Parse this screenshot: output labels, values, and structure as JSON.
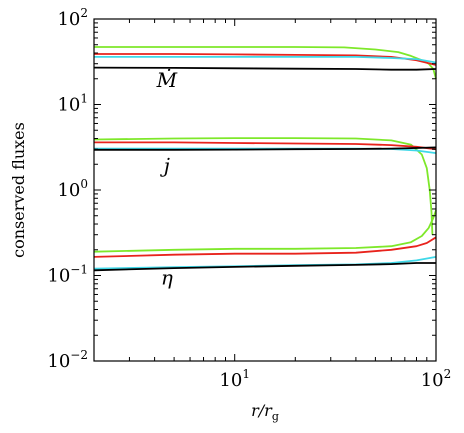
{
  "chart_data": {
    "type": "line",
    "xlabel": "r/r",
    "xlabel_sub": "g",
    "ylabel": "conserved fluxes",
    "xscale": "log",
    "yscale": "log",
    "xlim": [
      2,
      100
    ],
    "ylim": [
      0.01,
      100
    ],
    "grid": false,
    "x_ticks": [
      {
        "value": 10,
        "base": "10",
        "exp": "1"
      },
      {
        "value": 100,
        "base": "10",
        "exp": "2"
      }
    ],
    "y_ticks": [
      {
        "value": 0.01,
        "base": "10",
        "exp": "−2"
      },
      {
        "value": 0.1,
        "base": "10",
        "exp": "−1"
      },
      {
        "value": 1,
        "base": "10",
        "exp": "0"
      },
      {
        "value": 10,
        "base": "10",
        "exp": "1"
      },
      {
        "value": 100,
        "base": "10",
        "exp": "2"
      }
    ],
    "annotations": [
      {
        "text": "Ṁ",
        "x": 4.6,
        "y": 16
      },
      {
        "text": "j",
        "x": 4.6,
        "y": 1.6
      },
      {
        "text": "η",
        "x": 4.6,
        "y": 0.078
      }
    ],
    "series": [
      {
        "group": "Mdot",
        "color": "#7ee82a",
        "x": [
          2,
          5,
          10,
          20,
          35,
          50,
          65,
          75,
          85,
          92,
          97,
          100
        ],
        "y": [
          47,
          47,
          47,
          47,
          46.5,
          44,
          41,
          37,
          33,
          30,
          26,
          20
        ]
      },
      {
        "group": "Mdot",
        "color": "#e8231c",
        "x": [
          2,
          5,
          10,
          20,
          40,
          60,
          80,
          100
        ],
        "y": [
          39,
          39,
          38.5,
          38,
          37.5,
          36,
          33,
          29
        ]
      },
      {
        "group": "Mdot",
        "color": "#3fd8e8",
        "x": [
          2,
          5,
          10,
          20,
          40,
          60,
          80,
          100
        ],
        "y": [
          36,
          36,
          36,
          36,
          36,
          35,
          34,
          31
        ]
      },
      {
        "group": "Mdot",
        "color": "#000000",
        "x": [
          2,
          5,
          10,
          20,
          40,
          60,
          80,
          100
        ],
        "y": [
          27,
          26.8,
          26.5,
          26.2,
          26,
          25.5,
          25.5,
          26
        ]
      },
      {
        "group": "j",
        "color": "#7ee82a",
        "x": [
          2,
          5,
          10,
          20,
          40,
          60,
          75,
          85,
          90,
          93,
          95,
          96
        ],
        "y": [
          3.9,
          4.0,
          4.05,
          4.05,
          4.0,
          3.8,
          3.4,
          2.6,
          1.8,
          1.0,
          0.55,
          0.3
        ]
      },
      {
        "group": "j",
        "color": "#e8231c",
        "x": [
          2,
          5,
          10,
          20,
          40,
          60,
          80,
          100
        ],
        "y": [
          3.6,
          3.6,
          3.55,
          3.5,
          3.45,
          3.35,
          3.2,
          3.0
        ]
      },
      {
        "group": "j",
        "color": "#3fd8e8",
        "x": [
          2,
          5,
          10,
          20,
          40,
          60,
          80,
          100
        ],
        "y": [
          3.05,
          3.05,
          3.05,
          3.05,
          3.05,
          3.02,
          2.9,
          2.7
        ]
      },
      {
        "group": "j",
        "color": "#000000",
        "x": [
          2,
          5,
          10,
          20,
          40,
          60,
          80,
          100
        ],
        "y": [
          2.95,
          2.95,
          2.97,
          3.0,
          3.02,
          3.05,
          3.1,
          3.15
        ]
      },
      {
        "group": "eta",
        "color": "#7ee82a",
        "x": [
          2,
          5,
          10,
          20,
          40,
          60,
          75,
          85,
          92,
          97,
          100
        ],
        "y": [
          0.19,
          0.2,
          0.205,
          0.205,
          0.21,
          0.22,
          0.245,
          0.29,
          0.36,
          0.47,
          0.58
        ]
      },
      {
        "group": "eta",
        "color": "#e8231c",
        "x": [
          2,
          5,
          10,
          20,
          40,
          60,
          80,
          90,
          100
        ],
        "y": [
          0.165,
          0.175,
          0.18,
          0.18,
          0.185,
          0.2,
          0.22,
          0.24,
          0.28
        ]
      },
      {
        "group": "eta",
        "color": "#3fd8e8",
        "x": [
          2,
          5,
          10,
          20,
          40,
          60,
          80,
          100
        ],
        "y": [
          0.12,
          0.125,
          0.128,
          0.132,
          0.135,
          0.14,
          0.15,
          0.165
        ]
      },
      {
        "group": "eta",
        "color": "#000000",
        "x": [
          2,
          5,
          10,
          20,
          40,
          60,
          80,
          100
        ],
        "y": [
          0.115,
          0.122,
          0.126,
          0.13,
          0.133,
          0.136,
          0.14,
          0.14
        ]
      }
    ]
  }
}
